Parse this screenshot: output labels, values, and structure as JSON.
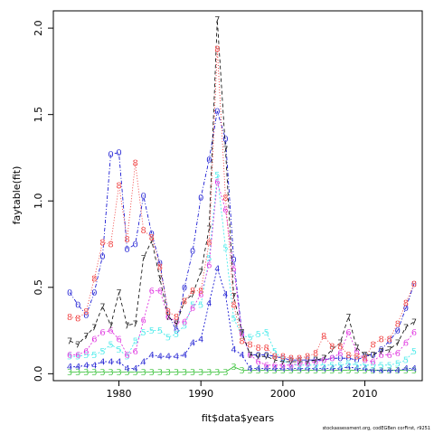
{
  "chart_data": {
    "type": "line",
    "xlabel": "fit$data$years",
    "ylabel": "faytable(fit)",
    "xlim": [
      1972,
      2017
    ],
    "ylim": [
      -0.04,
      2.1
    ],
    "x_ticks": [
      1980,
      1990,
      2000,
      2010
    ],
    "y_ticks": [
      0.0,
      0.5,
      1.0,
      1.5,
      2.0
    ],
    "y_tick_labels": [
      "0.0",
      "0.5",
      "1.0",
      "1.5",
      "2.0"
    ],
    "years": [
      1974,
      1975,
      1976,
      1977,
      1978,
      1979,
      1980,
      1981,
      1982,
      1983,
      1984,
      1985,
      1986,
      1987,
      1988,
      1989,
      1990,
      1991,
      1992,
      1993,
      1994,
      1995,
      1996,
      1997,
      1998,
      1999,
      2000,
      2001,
      2002,
      2003,
      2004,
      2005,
      2006,
      2007,
      2008,
      2009,
      2010,
      2011,
      2012,
      2013,
      2014,
      2015,
      2016
    ],
    "series": [
      {
        "label": "0",
        "color": "#0000cd",
        "dash": "4,2,1,2",
        "values": [
          0.47,
          0.4,
          0.34,
          0.47,
          0.68,
          1.27,
          1.28,
          0.72,
          0.75,
          1.03,
          0.81,
          0.64,
          0.35,
          0.25,
          0.5,
          0.71,
          1.02,
          1.24,
          1.52,
          1.36,
          0.66,
          0.24,
          0.11,
          0.11,
          0.11,
          0.1,
          0.09,
          0.08,
          0.08,
          0.08,
          0.08,
          0.08,
          0.09,
          0.09,
          0.09,
          0.08,
          0.1,
          0.11,
          0.14,
          0.19,
          0.25,
          0.38,
          0.52
        ]
      },
      {
        "label": "3",
        "color": "#22bb22",
        "dash": "",
        "values": [
          0.01,
          0.01,
          0.01,
          0.01,
          0.01,
          0.01,
          0.01,
          0.01,
          0.01,
          0.01,
          0.01,
          0.01,
          0.01,
          0.01,
          0.01,
          0.01,
          0.01,
          0.01,
          0.01,
          0.01,
          0.04,
          0.02,
          0.02,
          0.02,
          0.02,
          0.02,
          0.02,
          0.02,
          0.02,
          0.02,
          0.02,
          0.02,
          0.02,
          0.02,
          0.02,
          0.02,
          0.02,
          0.02,
          0.02,
          0.02,
          0.02,
          0.02,
          0.02
        ]
      },
      {
        "label": "4",
        "color": "#0000cd",
        "dash": "2,2",
        "values": [
          0.04,
          0.04,
          0.05,
          0.05,
          0.07,
          0.07,
          0.07,
          0.03,
          0.03,
          0.07,
          0.11,
          0.1,
          0.1,
          0.1,
          0.11,
          0.18,
          0.2,
          0.41,
          0.61,
          0.46,
          0.14,
          0.11,
          0.03,
          0.03,
          0.03,
          0.03,
          0.03,
          0.03,
          0.03,
          0.03,
          0.03,
          0.03,
          0.03,
          0.03,
          0.04,
          0.03,
          0.03,
          0.02,
          0.02,
          0.02,
          0.02,
          0.03,
          0.03
        ]
      },
      {
        "label": "5",
        "color": "#33e8e8",
        "dash": "2,2",
        "values": [
          0.1,
          0.1,
          0.11,
          0.11,
          0.13,
          0.17,
          0.14,
          0.1,
          0.19,
          0.24,
          0.25,
          0.25,
          0.21,
          0.23,
          0.28,
          0.4,
          0.4,
          0.67,
          1.15,
          0.73,
          0.32,
          0.22,
          0.21,
          0.23,
          0.24,
          0.13,
          0.08,
          0.05,
          0.05,
          0.05,
          0.05,
          0.05,
          0.05,
          0.05,
          0.06,
          0.05,
          0.05,
          0.05,
          0.05,
          0.05,
          0.06,
          0.08,
          0.13
        ]
      },
      {
        "label": "6",
        "color": "#dd22dd",
        "dash": "2,2",
        "values": [
          0.11,
          0.11,
          0.13,
          0.2,
          0.24,
          0.25,
          0.2,
          0.11,
          0.13,
          0.31,
          0.48,
          0.48,
          0.33,
          0.3,
          0.3,
          0.38,
          0.46,
          0.63,
          1.11,
          0.95,
          0.61,
          0.23,
          0.11,
          0.07,
          0.05,
          0.05,
          0.05,
          0.05,
          0.06,
          0.06,
          0.07,
          0.08,
          0.09,
          0.12,
          0.24,
          0.13,
          0.08,
          0.07,
          0.11,
          0.11,
          0.12,
          0.18,
          0.24
        ]
      },
      {
        "label": "7",
        "color": "#000000",
        "dash": "4,3",
        "values": [
          0.19,
          0.17,
          0.22,
          0.27,
          0.39,
          0.28,
          0.47,
          0.28,
          0.29,
          0.67,
          0.77,
          0.55,
          0.33,
          0.29,
          0.42,
          0.46,
          0.59,
          0.84,
          2.05,
          1.3,
          0.45,
          0.24,
          0.11,
          0.1,
          0.1,
          0.08,
          0.07,
          0.07,
          0.07,
          0.07,
          0.08,
          0.09,
          0.14,
          0.18,
          0.33,
          0.15,
          0.11,
          0.11,
          0.13,
          0.14,
          0.18,
          0.27,
          0.3
        ]
      },
      {
        "label": "8",
        "color": "#ee2222",
        "dash": "1,2",
        "values": [
          0.33,
          0.32,
          0.36,
          0.55,
          0.76,
          0.75,
          1.09,
          0.78,
          1.22,
          0.83,
          0.79,
          0.62,
          0.36,
          0.33,
          0.42,
          0.48,
          0.48,
          0.76,
          1.88,
          1.02,
          0.4,
          0.19,
          0.17,
          0.15,
          0.15,
          0.1,
          0.1,
          0.09,
          0.09,
          0.1,
          0.12,
          0.22,
          0.16,
          0.16,
          0.11,
          0.1,
          0.09,
          0.17,
          0.2,
          0.2,
          0.29,
          0.41,
          0.52
        ]
      }
    ]
  },
  "footer": {
    "credit": "stockassessment.org, codEGBen corFirst, r9251"
  }
}
